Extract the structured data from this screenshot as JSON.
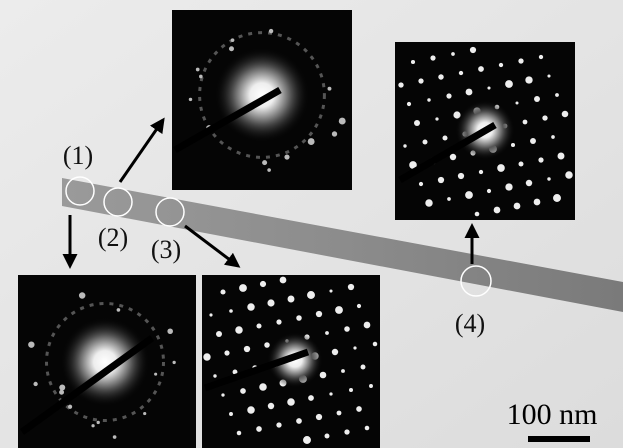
{
  "labels": [
    "(1)",
    "(2)",
    "(3)",
    "(4)"
  ],
  "scale_bar": {
    "label": "100 nm"
  }
}
